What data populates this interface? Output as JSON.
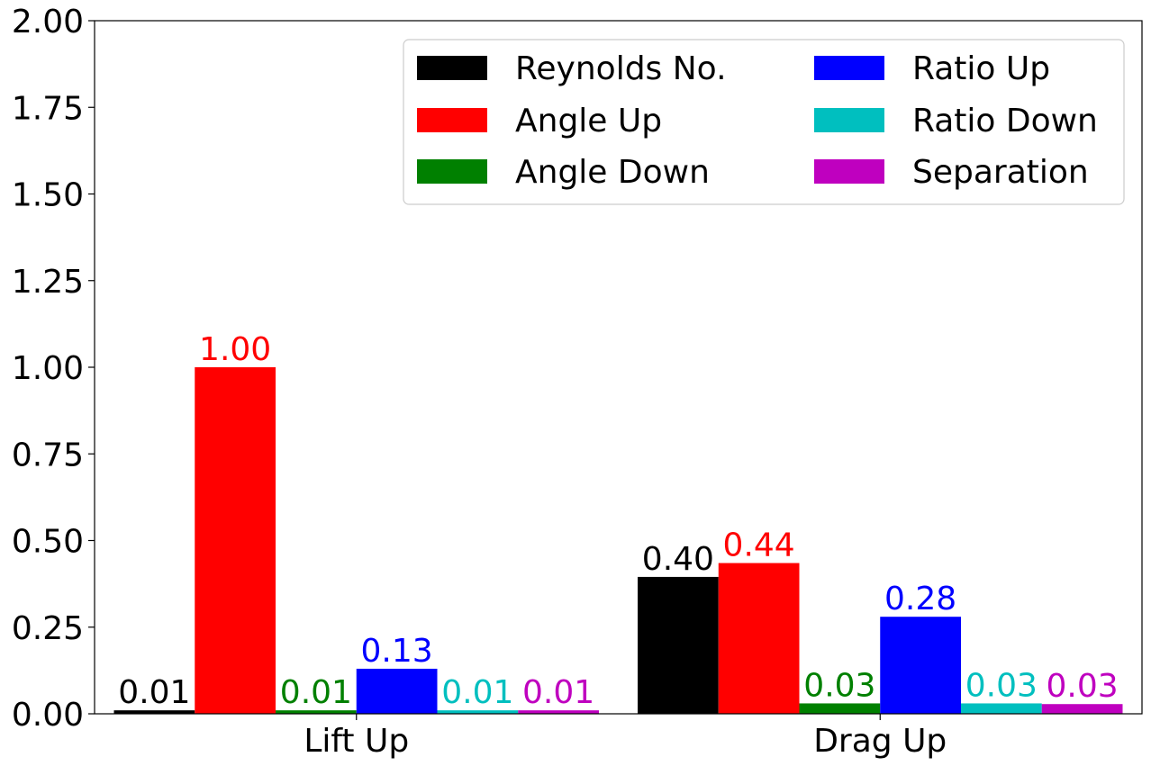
{
  "chart_data": {
    "type": "bar",
    "categories": [
      "Lift Up",
      "Drag Up"
    ],
    "series": [
      {
        "name": "Reynolds No.",
        "color": "#000000",
        "values": [
          0.01,
          0.395
        ],
        "labels": [
          "0.01",
          "0.40"
        ]
      },
      {
        "name": "Angle Up",
        "color": "#ff0000",
        "values": [
          1.0,
          0.435
        ],
        "labels": [
          "1.00",
          "0.44"
        ]
      },
      {
        "name": "Angle Down",
        "color": "#008000",
        "values": [
          0.01,
          0.03
        ],
        "labels": [
          "0.01",
          "0.03"
        ]
      },
      {
        "name": "Ratio Up",
        "color": "#0000ff",
        "values": [
          0.13,
          0.28
        ],
        "labels": [
          "0.13",
          "0.28"
        ]
      },
      {
        "name": "Ratio Down",
        "color": "#00bfbf",
        "values": [
          0.01,
          0.03
        ],
        "labels": [
          "0.01",
          "0.03"
        ]
      },
      {
        "name": "Separation",
        "color": "#bf00bf",
        "values": [
          0.01,
          0.028
        ],
        "labels": [
          "0.01",
          "0.03"
        ]
      }
    ],
    "yticks": [
      "0.00",
      "0.25",
      "0.50",
      "0.75",
      "1.00",
      "1.25",
      "1.50",
      "1.75",
      "2.00"
    ],
    "ylim": [
      0,
      2
    ],
    "legend": "top-right",
    "legend_columns": 2,
    "grid": false
  }
}
